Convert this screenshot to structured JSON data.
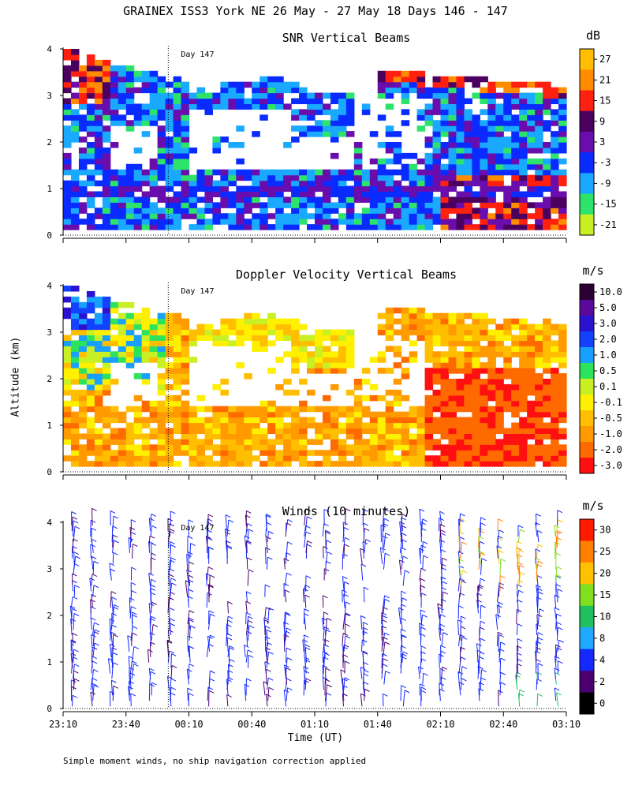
{
  "title": "GRAINEX ISS3 York NE  26 May - 27 May 18 Days 146 - 147",
  "ylabel": "Altitude (km)",
  "xlabel": "Time (UT)",
  "footnote": "Simple moment winds, no ship navigation correction applied",
  "day_marker": "Day 147",
  "chart_data": [
    {
      "type": "heatmap",
      "title": "SNR Vertical Beams",
      "unit": "dB",
      "ylim": [
        0,
        4
      ],
      "yticks": [
        "0",
        "1",
        "2",
        "3",
        "4"
      ],
      "xticks": [
        "23:10",
        "23:40",
        "00:10",
        "00:40",
        "01:10",
        "01:40",
        "02:10",
        "02:40",
        "03:10"
      ],
      "colorbar_labels": [
        "27",
        "21",
        "15",
        "9",
        "3",
        "-3",
        "-9",
        "-15",
        "-21"
      ],
      "colorbar_colors": [
        "#ffbf00",
        "#ff8c00",
        "#ff2010",
        "#4b0060",
        "#6a0dad",
        "#0a2bff",
        "#19a9ff",
        "#2ee36c",
        "#c8f024"
      ],
      "day_marker_time": "00:00"
    },
    {
      "type": "heatmap",
      "title": "Doppler Velocity Vertical Beams",
      "unit": "m/s",
      "ylim": [
        0,
        4
      ],
      "yticks": [
        "0",
        "1",
        "2",
        "3",
        "4"
      ],
      "xticks": [
        "23:10",
        "23:40",
        "00:10",
        "00:40",
        "01:10",
        "01:40",
        "02:10",
        "02:40",
        "03:10"
      ],
      "colorbar_labels": [
        "10.0",
        "5.0",
        "3.0",
        "2.0",
        "1.0",
        "0.5",
        "0.1",
        "-0.1",
        "-0.5",
        "-1.0",
        "-2.0",
        "-3.0"
      ],
      "colorbar_colors": [
        "#2b0033",
        "#5a0a9a",
        "#2a12d0",
        "#1440ff",
        "#18a0ff",
        "#2ee35c",
        "#c8f024",
        "#fff000",
        "#ffbf00",
        "#ff9a00",
        "#ff6a00",
        "#ff1010"
      ],
      "day_marker_time": "00:00"
    },
    {
      "type": "wind_barbs",
      "title": "Winds (10 minutes)",
      "unit": "m/s",
      "ylim": [
        0,
        4
      ],
      "yticks": [
        "0",
        "1",
        "2",
        "3",
        "4"
      ],
      "xticks": [
        "23:10",
        "23:40",
        "00:10",
        "00:40",
        "01:10",
        "01:40",
        "02:10",
        "02:40",
        "03:10"
      ],
      "colorbar_labels": [
        "30",
        "25",
        "20",
        "15",
        "10",
        "8",
        "4",
        "2",
        "0"
      ],
      "colorbar_colors": [
        "#ff1a00",
        "#ff8000",
        "#ffc000",
        "#80e020",
        "#20c060",
        "#20a8ff",
        "#1428ff",
        "#4b0070",
        "#000000"
      ],
      "day_marker_time": "00:00"
    }
  ]
}
